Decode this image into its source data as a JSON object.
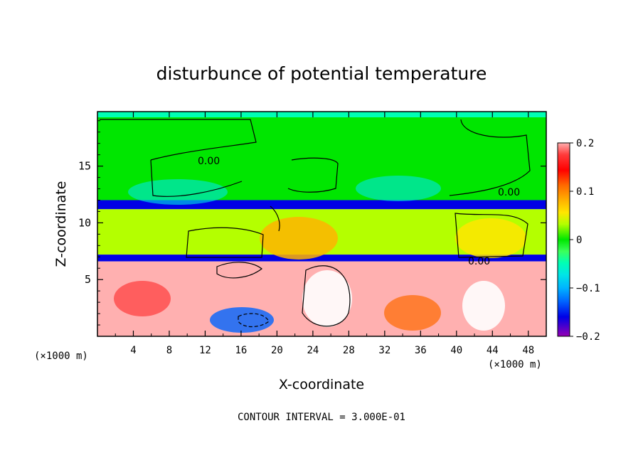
{
  "chart_data": {
    "type": "heatmap",
    "title": "disturbunce of potential temperature",
    "xlabel": "X-coordinate",
    "ylabel": "Z-coordinate",
    "x_unit": "(×1000 m)",
    "xlim": [
      0,
      50
    ],
    "ylim": [
      0,
      19.8
    ],
    "x_ticks": [
      4,
      8,
      12,
      16,
      20,
      24,
      28,
      32,
      36,
      40,
      44,
      48
    ],
    "y_ticks": [
      5,
      10,
      15
    ],
    "colorbar": {
      "range": [
        -0.2,
        0.2
      ],
      "tick_values": [
        0.2,
        0.1,
        0,
        -0.1,
        -0.2
      ],
      "tick_labels": [
        "0.2",
        "0.1",
        "0",
        "−0.1",
        "−0.2"
      ],
      "colors": [
        "#ffb0b0",
        "#ff3c3c",
        "#ff0000",
        "#ff6a00",
        "#ffb400",
        "#ffe600",
        "#b4ff00",
        "#00e600",
        "#3cff5a",
        "#00ffb4",
        "#00e6e6",
        "#00b4ff",
        "#0064ff",
        "#0000e6",
        "#8c00c8",
        "#b400b4"
      ]
    },
    "contour_labels": [
      "0.00",
      "0.00",
      "0.00"
    ],
    "layers": [
      {
        "z_range": [
          19.3,
          19.8
        ],
        "value": -0.04,
        "name": ""
      },
      {
        "z_range": [
          12,
          19.3
        ],
        "value": 0.02,
        "name": ""
      },
      {
        "z_range": [
          11.2,
          12
        ],
        "value": -0.14,
        "name": ""
      },
      {
        "z_range": [
          7.2,
          11.2
        ],
        "value": 0.04,
        "name": ""
      },
      {
        "z_range": [
          6.6,
          7.2
        ],
        "value": -0.16,
        "name": ""
      },
      {
        "z_range": [
          0,
          6.6
        ],
        "value": 0.2,
        "name": ""
      }
    ],
    "contour_interval_text": "CONTOUR INTERVAL = 3.000E-01"
  }
}
